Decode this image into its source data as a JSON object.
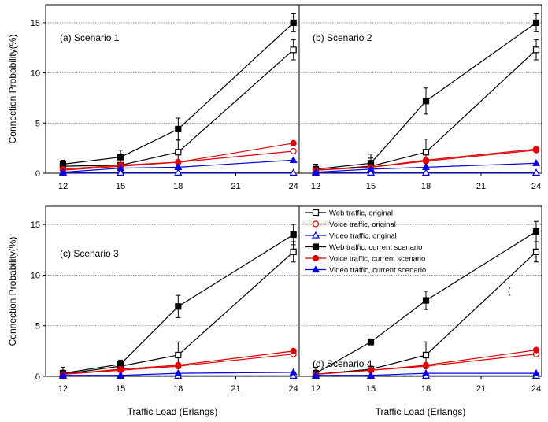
{
  "ylabel": "Connection Probability(%)",
  "xlabel": "Traffic Load (Erlangs)",
  "stray_mark": "(",
  "colors": {
    "web": "#000000",
    "voice": "#e00000",
    "video": "#0000e0",
    "grid": "#808080"
  },
  "legend": {
    "entries": [
      {
        "label": "Web traffic, original",
        "series": "web",
        "marker": "square-open"
      },
      {
        "label": "Voice traffic, original",
        "series": "voice",
        "marker": "circle-open"
      },
      {
        "label": "Video traffic, original",
        "series": "video",
        "marker": "triangle-open"
      },
      {
        "label": "Web traffic, current scenario",
        "series": "web",
        "marker": "square-filled"
      },
      {
        "label": "Voice traffic, current scenario",
        "series": "voice",
        "marker": "circle-filled"
      },
      {
        "label": "Video traffic, current scenario",
        "series": "video",
        "marker": "triangle-filled"
      }
    ]
  },
  "chart_data": [
    {
      "type": "line",
      "title": "(a) Scenario 1",
      "x": [
        12,
        15,
        18,
        24
      ],
      "xticks": [
        12,
        15,
        18,
        21,
        24
      ],
      "yticks": [
        0,
        5,
        10,
        15
      ],
      "ylim": [
        0,
        16.8
      ],
      "grid": "horizontal dotted",
      "series": [
        {
          "name": "Web traffic, original",
          "color": "web",
          "marker": "square-open",
          "values": [
            0.7,
            0.8,
            2.1,
            12.3
          ],
          "err": [
            0.6,
            0.6,
            1.3,
            1.0
          ]
        },
        {
          "name": "Voice traffic, original",
          "color": "voice",
          "marker": "circle-open",
          "values": [
            0.3,
            0.7,
            1.1,
            2.2
          ],
          "err": [
            0,
            0,
            0,
            0
          ]
        },
        {
          "name": "Video traffic, original",
          "color": "video",
          "marker": "triangle-open",
          "values": [
            0.05,
            0.05,
            0.05,
            0.05
          ],
          "err": [
            0,
            0,
            0,
            0
          ]
        },
        {
          "name": "Web traffic, current scenario",
          "color": "web",
          "marker": "square-filled",
          "values": [
            0.9,
            1.6,
            4.4,
            15.0
          ],
          "err": [
            0.4,
            0.7,
            1.1,
            0.9
          ]
        },
        {
          "name": "Voice traffic, current scenario",
          "color": "voice",
          "marker": "circle-filled",
          "values": [
            0.4,
            0.8,
            1.1,
            3.0
          ],
          "err": [
            0,
            0,
            0,
            0
          ]
        },
        {
          "name": "Video traffic, current scenario",
          "color": "video",
          "marker": "triangle-filled",
          "values": [
            0.1,
            0.5,
            0.6,
            1.3
          ],
          "err": [
            0,
            0,
            0,
            0
          ]
        }
      ]
    },
    {
      "type": "line",
      "title": "(b) Scenario 2",
      "x": [
        12,
        15,
        18,
        24
      ],
      "xticks": [
        12,
        15,
        18,
        21,
        24
      ],
      "yticks": [
        0,
        5,
        10,
        15
      ],
      "ylim": [
        0,
        16.8
      ],
      "grid": "horizontal dotted",
      "series": [
        {
          "name": "Web traffic, original",
          "color": "web",
          "marker": "square-open",
          "values": [
            0.3,
            0.7,
            2.1,
            12.3
          ],
          "err": [
            0.6,
            1.2,
            1.3,
            1.0
          ]
        },
        {
          "name": "Voice traffic, original",
          "color": "voice",
          "marker": "circle-open",
          "values": [
            0.3,
            0.6,
            1.3,
            2.4
          ],
          "err": [
            0,
            0,
            0,
            0
          ]
        },
        {
          "name": "Video traffic, original",
          "color": "video",
          "marker": "triangle-open",
          "values": [
            0.05,
            0.05,
            0.05,
            0.05
          ],
          "err": [
            0,
            0,
            0,
            0
          ]
        },
        {
          "name": "Web traffic, current scenario",
          "color": "web",
          "marker": "square-filled",
          "values": [
            0.4,
            1.0,
            7.2,
            15.0
          ],
          "err": [
            0.3,
            0.5,
            1.3,
            0.9
          ]
        },
        {
          "name": "Voice traffic, current scenario",
          "color": "voice",
          "marker": "circle-filled",
          "values": [
            0.3,
            0.6,
            1.2,
            2.3
          ],
          "err": [
            0,
            0,
            0,
            0
          ]
        },
        {
          "name": "Video traffic, current scenario",
          "color": "video",
          "marker": "triangle-filled",
          "values": [
            0.1,
            0.4,
            0.6,
            1.0
          ],
          "err": [
            0,
            0,
            0,
            0
          ]
        }
      ]
    },
    {
      "type": "line",
      "title": "(c) Scenario 3",
      "x": [
        12,
        15,
        18,
        24
      ],
      "xticks": [
        12,
        15,
        18,
        21,
        24
      ],
      "yticks": [
        0,
        5,
        10,
        15
      ],
      "ylim": [
        0,
        16.8
      ],
      "grid": "horizontal dotted",
      "series": [
        {
          "name": "Web traffic, original",
          "color": "web",
          "marker": "square-open",
          "values": [
            0.2,
            1.0,
            2.1,
            12.3
          ],
          "err": [
            0.7,
            0.5,
            1.3,
            1.0
          ]
        },
        {
          "name": "Voice traffic, original",
          "color": "voice",
          "marker": "circle-open",
          "values": [
            0.2,
            0.6,
            1.0,
            2.2
          ],
          "err": [
            0,
            0,
            0,
            0
          ]
        },
        {
          "name": "Video traffic, original",
          "color": "video",
          "marker": "triangle-open",
          "values": [
            0.05,
            0.05,
            0.05,
            0.05
          ],
          "err": [
            0,
            0,
            0,
            0
          ]
        },
        {
          "name": "Web traffic, current scenario",
          "color": "web",
          "marker": "square-filled",
          "values": [
            0.3,
            1.2,
            6.9,
            14.0
          ],
          "err": [
            0.3,
            0.4,
            1.1,
            1.0
          ]
        },
        {
          "name": "Voice traffic, current scenario",
          "color": "voice",
          "marker": "circle-filled",
          "values": [
            0.2,
            0.7,
            1.1,
            2.5
          ],
          "err": [
            0,
            0,
            0,
            0
          ]
        },
        {
          "name": "Video traffic, current scenario",
          "color": "video",
          "marker": "triangle-filled",
          "values": [
            0.1,
            0.1,
            0.3,
            0.4
          ],
          "err": [
            0,
            0,
            0,
            0
          ]
        }
      ]
    },
    {
      "type": "line",
      "title": "(d) Scenario 4",
      "x": [
        12,
        15,
        18,
        24
      ],
      "xticks": [
        12,
        15,
        18,
        21,
        24
      ],
      "yticks": [
        0,
        5,
        10,
        15
      ],
      "ylim": [
        0,
        16.8
      ],
      "grid": "horizontal dotted",
      "series": [
        {
          "name": "Web traffic, original",
          "color": "web",
          "marker": "square-open",
          "values": [
            0.2,
            0.7,
            2.1,
            12.3
          ],
          "err": [
            0.7,
            0.3,
            1.3,
            1.0
          ]
        },
        {
          "name": "Voice traffic, original",
          "color": "voice",
          "marker": "circle-open",
          "values": [
            0.2,
            0.6,
            1.0,
            2.2
          ],
          "err": [
            0,
            0,
            0,
            0
          ]
        },
        {
          "name": "Video traffic, original",
          "color": "video",
          "marker": "triangle-open",
          "values": [
            0.05,
            0.05,
            0.05,
            0.05
          ],
          "err": [
            0,
            0,
            0,
            0
          ]
        },
        {
          "name": "Web traffic, current scenario",
          "color": "web",
          "marker": "square-filled",
          "values": [
            0.3,
            3.4,
            7.5,
            14.3
          ],
          "err": [
            0.3,
            0.3,
            0.9,
            1.0
          ]
        },
        {
          "name": "Voice traffic, current scenario",
          "color": "voice",
          "marker": "circle-filled",
          "values": [
            0.2,
            0.6,
            1.1,
            2.6
          ],
          "err": [
            0,
            0,
            0,
            0
          ]
        },
        {
          "name": "Video traffic, current scenario",
          "color": "video",
          "marker": "triangle-filled",
          "values": [
            0.1,
            0.1,
            0.3,
            0.3
          ],
          "err": [
            0,
            0,
            0,
            0
          ]
        }
      ]
    }
  ]
}
